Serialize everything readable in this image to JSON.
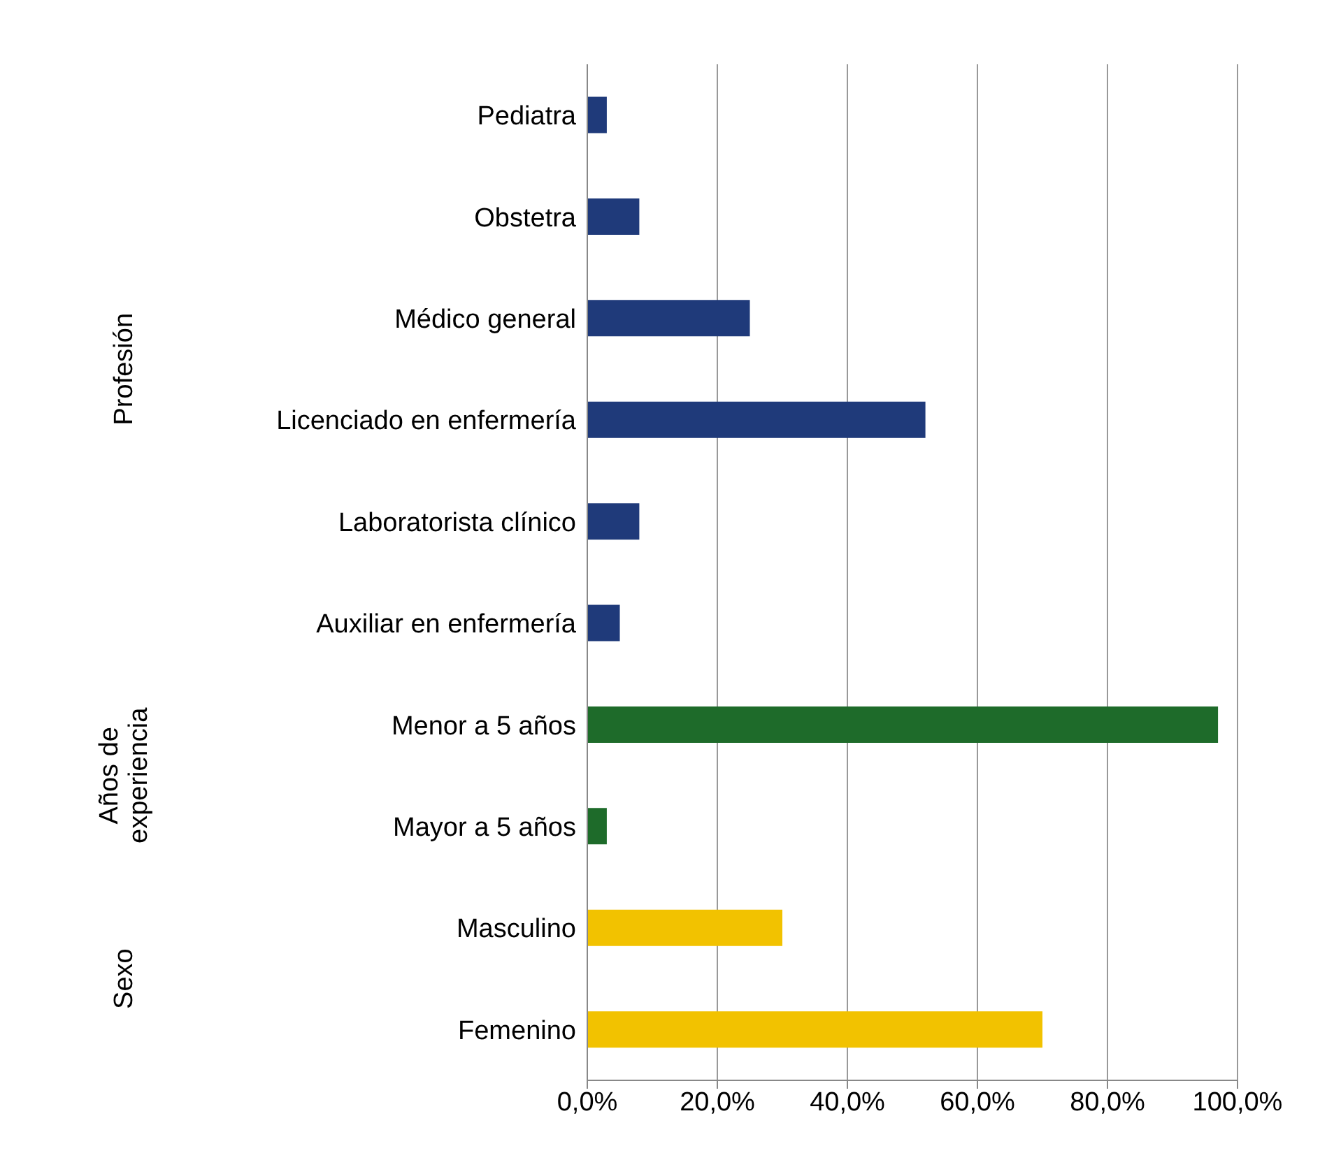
{
  "chart_data": {
    "type": "bar",
    "orientation": "horizontal",
    "grid": "x",
    "categories": [
      "Pediatra",
      "Obstetra",
      "Médico general",
      "Licenciado en enfermería",
      "Laboratorista clínico",
      "Auxiliar en enfermería",
      "Menor a 5 años",
      "Mayor a 5 años",
      "Masculino",
      "Femenino"
    ],
    "values": [
      3,
      8,
      25,
      52,
      8,
      5,
      97,
      3,
      30,
      70
    ],
    "colors": [
      "#1f3a7a",
      "#1f3a7a",
      "#1f3a7a",
      "#1f3a7a",
      "#1f3a7a",
      "#1f3a7a",
      "#1e6b2a",
      "#1e6b2a",
      "#f2c200",
      "#f2c200"
    ],
    "annotations": [
      "Profesión",
      "Años de experiencia",
      "Sexo"
    ],
    "xlim": [
      0,
      100
    ],
    "xticks": [
      {
        "value": 0,
        "label": "0,0%"
      },
      {
        "value": 20,
        "label": "20,0%"
      },
      {
        "value": 40,
        "label": "40,0%"
      },
      {
        "value": 60,
        "label": "60,0%"
      },
      {
        "value": 80,
        "label": "80,0%"
      },
      {
        "value": 100,
        "label": "100,0%"
      }
    ]
  }
}
